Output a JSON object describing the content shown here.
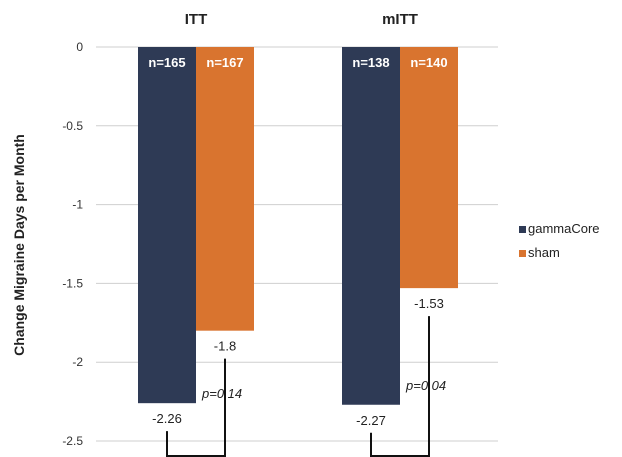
{
  "chart_data": {
    "type": "bar",
    "ylabel": "Change Migraine Days per Month",
    "ylim": [
      -2.5,
      0
    ],
    "yticks": [
      {
        "value": 0,
        "label": "0"
      },
      {
        "value": -0.5,
        "label": "-0.5"
      },
      {
        "value": -1,
        "label": "-1"
      },
      {
        "value": -1.5,
        "label": "-1.5"
      },
      {
        "value": -2,
        "label": "-2"
      },
      {
        "value": -2.5,
        "label": "-2.5"
      }
    ],
    "grid": true,
    "legend_position": "right",
    "categories": [
      "ITT",
      "mITT"
    ],
    "series": [
      {
        "name": "gammaCore",
        "color": "#2e3a55",
        "values": [
          -2.26,
          -2.27
        ],
        "value_labels": [
          "-2.26",
          "-2.27"
        ],
        "n_labels": [
          "n=165",
          "n=138"
        ]
      },
      {
        "name": "sham",
        "color": "#d9742f",
        "values": [
          -1.8,
          -1.53
        ],
        "value_labels": [
          "-1.8",
          "-1.53"
        ],
        "n_labels": [
          "n=167",
          "n=140"
        ]
      }
    ],
    "p_values": [
      "p=0.14",
      "p=0.04"
    ]
  }
}
